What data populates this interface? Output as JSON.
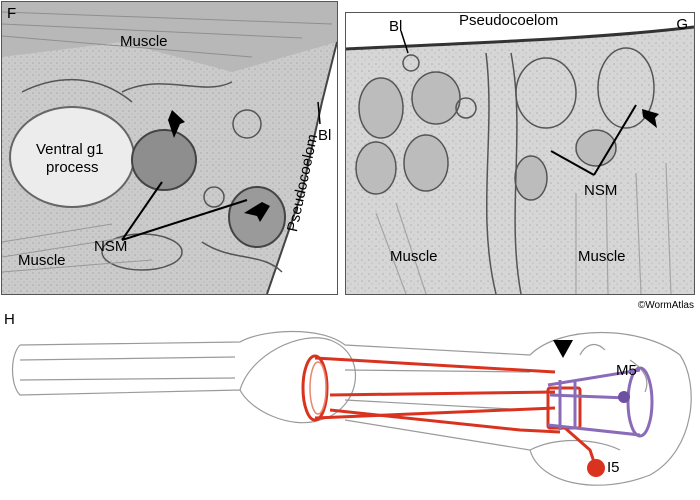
{
  "panel_f": {
    "letter": "F",
    "labels": {
      "muscle_top": "Muscle",
      "ventral_g1_line1": "Ventral g1",
      "ventral_g1_line2": "process",
      "nsm": "NSM",
      "muscle_bottom": "Muscle",
      "bl": "Bl",
      "pseudocoelom": "Pseudocoelom"
    }
  },
  "panel_g": {
    "letter": "G",
    "labels": {
      "bl": "Bl",
      "pseudocoelom": "Pseudocoelom",
      "nsm": "NSM",
      "muscle_left": "Muscle",
      "muscle_right": "Muscle"
    }
  },
  "credit": "©WormAtlas",
  "panel_h": {
    "letter": "H",
    "labels": {
      "m5": "M5",
      "i5": "I5"
    }
  },
  "colors": {
    "neuron_red": "#d9331f",
    "neuron_purple": "#8a6bb8",
    "outline_gray": "#9a9a9a"
  }
}
